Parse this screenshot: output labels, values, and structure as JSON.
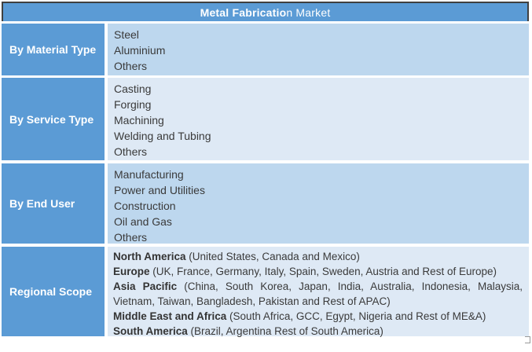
{
  "title": {
    "bold_part": "Metal Fabricatio",
    "regular_part": "n Market"
  },
  "colors": {
    "header_fill": "#5b9bd5",
    "label_fill": "#5b9bd5",
    "row_fill_dark": "#bdd7ee",
    "row_fill_light": "#dee9f5",
    "header_border": "#404040",
    "text_dark": "#3a3a3a",
    "text_light": "#ffffff"
  },
  "rows": [
    {
      "label": "By Material Type",
      "items": [
        "Steel",
        "Aluminium",
        "Others"
      ]
    },
    {
      "label": "By Service Type",
      "items": [
        "Casting",
        "Forging",
        "Machining",
        "Welding and Tubing",
        "Others"
      ]
    },
    {
      "label": "By End User",
      "items": [
        "Manufacturing",
        "Power and Utilities",
        "Construction",
        "Oil and Gas",
        "Others"
      ]
    },
    {
      "label": "Regional Scope",
      "regions": [
        {
          "name": "North America",
          "countries": "(United States, Canada and Mexico)"
        },
        {
          "name": "Europe",
          "countries": "(UK, France, Germany, Italy, Spain, Sweden, Austria and Rest of Europe)"
        },
        {
          "name": "Asia Pacific",
          "countries": "(China, South Korea, Japan, India, Australia, Indonesia, Malaysia, Vietnam, Taiwan, Bangladesh, Pakistan and Rest of APAC)"
        },
        {
          "name": "Middle East and Africa",
          "countries": "(South Africa, GCC, Egypt, Nigeria and Rest of ME&A)"
        },
        {
          "name": "South America",
          "countries": "(Brazil, Argentina Rest of South America)"
        }
      ]
    }
  ]
}
